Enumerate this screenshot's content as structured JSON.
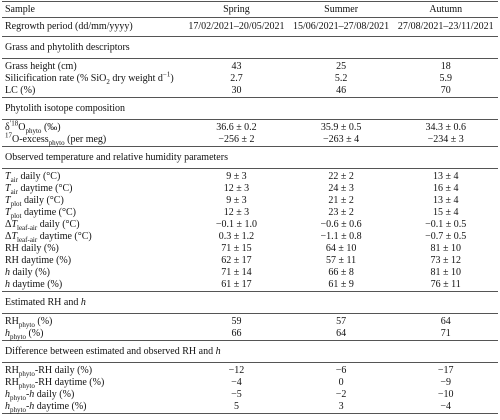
{
  "table": {
    "header": [
      "Sample",
      "Spring",
      "Summer",
      "Autumn"
    ],
    "rows": [
      {
        "label": [
          "Regrowth period (dd/mm/yyyy)"
        ],
        "cells": [
          "17/02/2021–20/05/2021",
          "15/06/2021–27/08/2021",
          "27/08/2021–23/11/2021"
        ]
      },
      {
        "section": [
          "Grass and phytolith descriptors"
        ]
      },
      {
        "label": [
          "Grass height (cm)"
        ],
        "cells": [
          "43",
          "25",
          "18"
        ]
      },
      {
        "label": [
          "Silicification rate (% SiO",
          {
            "sub": "2"
          },
          " dry weight d",
          {
            "sup": "−1"
          },
          ")"
        ],
        "cells": [
          "2.7",
          "5.2",
          "5.9"
        ]
      },
      {
        "label": [
          "LC (%)"
        ],
        "cells": [
          "30",
          "46",
          "70"
        ]
      },
      {
        "section": [
          "Phytolith isotope composition"
        ]
      },
      {
        "label": [
          "δ",
          {
            "sup": "′18"
          },
          "O",
          {
            "sub": "phyto"
          },
          " (‰)"
        ],
        "cells": [
          "36.6 ± 0.2",
          "35.9 ± 0.5",
          "34.3 ± 0.6"
        ]
      },
      {
        "label": [
          {
            "sup": "17"
          },
          "O-excess",
          {
            "sub": "phyto"
          },
          " (per meg)"
        ],
        "cells": [
          "−256 ± 2",
          "−263 ± 4",
          "−234 ± 3"
        ]
      },
      {
        "section": [
          "Observed temperature and relative humidity parameters"
        ]
      },
      {
        "label": [
          {
            "it": "T"
          },
          {
            "sub": "air"
          },
          " daily (°C)"
        ],
        "cells": [
          "9 ± 3",
          "22 ± 2",
          "13 ± 4"
        ]
      },
      {
        "label": [
          {
            "it": "T"
          },
          {
            "sub": "air"
          },
          " daytime (°C)"
        ],
        "cells": [
          "12 ± 3",
          "24 ± 3",
          "16 ± 4"
        ]
      },
      {
        "label": [
          {
            "it": "T"
          },
          {
            "sub": "plot"
          },
          " daily (°C)"
        ],
        "cells": [
          "9 ± 3",
          "21 ± 2",
          "13 ± 4"
        ]
      },
      {
        "label": [
          {
            "it": "T"
          },
          {
            "sub": "plot"
          },
          " daytime (°C)"
        ],
        "cells": [
          "12 ± 3",
          "23 ± 2",
          "15 ± 4"
        ]
      },
      {
        "label": [
          "Δ",
          {
            "it": "T"
          },
          {
            "sub": "leaf-air"
          },
          " daily (°C)"
        ],
        "cells": [
          "−0.1 ± 1.0",
          "−0.6 ± 0.6",
          "−0.1 ± 0.5"
        ]
      },
      {
        "label": [
          "Δ",
          {
            "it": "T"
          },
          {
            "sub": "leaf-air"
          },
          " daytime (°C)"
        ],
        "cells": [
          "0.3 ± 1.2",
          "−1.1 ± 0.8",
          "−0.7 ± 0.5"
        ]
      },
      {
        "label": [
          "RH daily (%)"
        ],
        "cells": [
          "71 ± 15",
          "64 ± 10",
          "81 ± 10"
        ]
      },
      {
        "label": [
          "RH daytime (%)"
        ],
        "cells": [
          "62 ± 17",
          "57 ± 11",
          "73 ± 12"
        ]
      },
      {
        "label": [
          {
            "it": "h"
          },
          " daily (%)"
        ],
        "cells": [
          "71 ± 14",
          "66 ± 8",
          "81 ± 10"
        ]
      },
      {
        "label": [
          {
            "it": "h"
          },
          " daytime (%)"
        ],
        "cells": [
          "61 ± 17",
          "61 ± 9",
          "76 ± 11"
        ]
      },
      {
        "section": [
          "Estimated RH and ",
          {
            "it": "h"
          }
        ]
      },
      {
        "label": [
          "RH",
          {
            "sub": "phyto"
          },
          " (%)"
        ],
        "cells": [
          "59",
          "57",
          "64"
        ]
      },
      {
        "label": [
          {
            "it": "h"
          },
          {
            "sub": "phyto"
          },
          " (%)"
        ],
        "cells": [
          "66",
          "64",
          "71"
        ]
      },
      {
        "section": [
          "Difference between estimated and observed RH and ",
          {
            "it": "h"
          }
        ]
      },
      {
        "label": [
          "RH",
          {
            "sub": "phyto"
          },
          "-RH daily (%)"
        ],
        "cells": [
          "−12",
          "−6",
          "−17"
        ]
      },
      {
        "label": [
          "RH",
          {
            "sub": "phyto"
          },
          "-RH daytime (%)"
        ],
        "cells": [
          "−4",
          "0",
          "−9"
        ]
      },
      {
        "label": [
          {
            "it": "h"
          },
          {
            "sub": "phyto"
          },
          "-",
          {
            "it": "h"
          },
          " daily (%)"
        ],
        "cells": [
          "−5",
          "−2",
          "−10"
        ]
      },
      {
        "label": [
          {
            "it": "h"
          },
          {
            "sub": "phyto"
          },
          "-",
          {
            "it": "h"
          },
          " daytime (%)"
        ],
        "cells": [
          "5",
          "3",
          "−4"
        ]
      }
    ]
  }
}
